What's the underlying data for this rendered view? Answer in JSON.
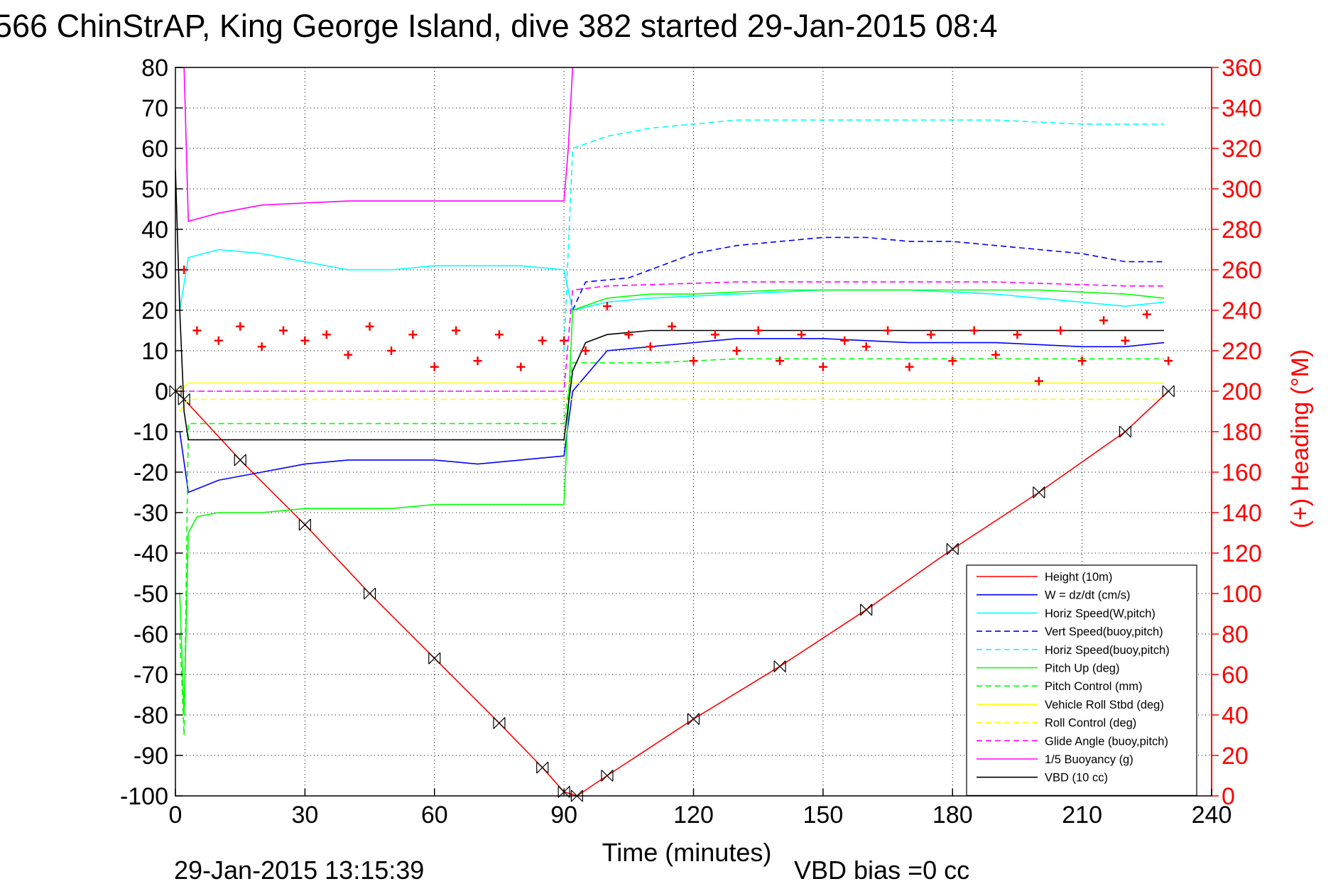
{
  "title": "566 ChinStrAP, King George Island, dive 382 started 29-Jan-2015 08:4",
  "footer": {
    "timestamp": "29-Jan-2015 13:15:39",
    "vbd_bias": "VBD bias =0 cc"
  },
  "chart_data": {
    "type": "line",
    "xlabel": "Time (minutes)",
    "ylabel_right": "(+) Heading (°M)",
    "xlim": [
      0,
      240
    ],
    "ylim_left": [
      -100,
      80
    ],
    "ylim_right": [
      0,
      360
    ],
    "x_ticks": [
      "0",
      "30",
      "60",
      "90",
      "120",
      "150",
      "180",
      "210",
      "240"
    ],
    "y_ticks_left": [
      "80",
      "70",
      "60",
      "50",
      "40",
      "30",
      "20",
      "10",
      "0",
      "-10",
      "-20",
      "-30",
      "-40",
      "-50",
      "-60",
      "-70",
      "-80",
      "-90",
      "-100"
    ],
    "y_ticks_right": [
      "360",
      "340",
      "320",
      "300",
      "280",
      "260",
      "240",
      "220",
      "200",
      "180",
      "160",
      "140",
      "120",
      "100",
      "80",
      "60",
      "40",
      "20",
      "0"
    ],
    "grid": true,
    "legend_position": "bottom-right",
    "colors": {
      "red": "#ff0000",
      "blue": "#0000ff",
      "cyan": "#00ffff",
      "green": "#00ff00",
      "yellow": "#ffff00",
      "magenta": "#ff00ff",
      "black": "#000000"
    },
    "series": [
      {
        "name": "Height (10m)",
        "color": "#ff0000",
        "style": "solid",
        "x": [
          0,
          2,
          15,
          30,
          45,
          60,
          75,
          85,
          90,
          93,
          100,
          120,
          140,
          160,
          180,
          200,
          220,
          230
        ],
        "y": [
          0,
          -2,
          -17,
          -33,
          -50,
          -66,
          -82,
          -93,
          -99,
          -100,
          -95,
          -81,
          -68,
          -54,
          -39,
          -25,
          -10,
          0
        ]
      },
      {
        "name": "W = dz/dt (cm/s)",
        "color": "#0000ff",
        "style": "solid",
        "x": [
          1,
          3,
          10,
          20,
          30,
          40,
          50,
          60,
          70,
          80,
          90,
          92,
          100,
          110,
          130,
          150,
          170,
          190,
          210,
          220,
          229
        ],
        "y": [
          -10,
          -25,
          -22,
          -20,
          -18,
          -17,
          -17,
          -17,
          -18,
          -17,
          -16,
          0,
          10,
          11,
          13,
          13,
          12,
          12,
          11,
          11,
          12
        ]
      },
      {
        "name": "Horiz Speed(W,pitch)",
        "color": "#00ffff",
        "style": "solid",
        "x": [
          1,
          3,
          10,
          20,
          30,
          40,
          50,
          60,
          70,
          80,
          90,
          92,
          100,
          110,
          130,
          150,
          170,
          190,
          210,
          220,
          229
        ],
        "y": [
          20,
          33,
          35,
          34,
          32,
          30,
          30,
          31,
          31,
          31,
          30,
          20,
          22,
          23,
          24,
          25,
          25,
          24,
          22,
          21,
          22
        ]
      },
      {
        "name": "Vert Speed(buoy,pitch)",
        "color": "#0000ff",
        "style": "dashed",
        "x": [
          92,
          95,
          105,
          110,
          120,
          130,
          140,
          150,
          160,
          170,
          180,
          190,
          200,
          210,
          220,
          229
        ],
        "y": [
          20,
          27,
          28,
          30,
          34,
          36,
          37,
          38,
          38,
          37,
          37,
          36,
          35,
          34,
          32,
          32
        ]
      },
      {
        "name": "Horiz Speed(buoy,pitch)",
        "color": "#00ffff",
        "style": "dashed",
        "x": [
          90,
          92,
          100,
          110,
          120,
          130,
          150,
          170,
          190,
          210,
          229
        ],
        "y": [
          10,
          60,
          63,
          65,
          66,
          67,
          67,
          67,
          67,
          66,
          66
        ]
      },
      {
        "name": "Pitch Up (deg)",
        "color": "#00ff00",
        "style": "solid",
        "x": [
          1,
          2,
          3,
          5,
          10,
          20,
          30,
          40,
          50,
          60,
          70,
          80,
          90,
          92,
          100,
          110,
          120,
          140,
          160,
          180,
          200,
          220,
          229
        ],
        "y": [
          -50,
          -80,
          -35,
          -31,
          -30,
          -30,
          -29,
          -29,
          -29,
          -28,
          -28,
          -28,
          -28,
          20,
          23,
          24,
          24,
          25,
          25,
          25,
          25,
          24,
          23
        ]
      },
      {
        "name": "Pitch Control (mm)",
        "color": "#00ff00",
        "style": "dashed",
        "x": [
          1,
          2,
          3,
          10,
          30,
          50,
          70,
          90,
          92,
          110,
          130,
          150,
          170,
          190,
          210,
          229
        ],
        "y": [
          -60,
          -85,
          -8,
          -8,
          -8,
          -8,
          -8,
          -8,
          7,
          7,
          8,
          8,
          8,
          8,
          8,
          8
        ]
      },
      {
        "name": "Vehicle Roll Stbd (deg)",
        "color": "#ffff00",
        "style": "solid",
        "x": [
          1,
          3,
          10,
          30,
          50,
          70,
          90,
          92,
          110,
          130,
          150,
          170,
          190,
          210,
          229
        ],
        "y": [
          0,
          2,
          2,
          2,
          2,
          2,
          2,
          2,
          2,
          2,
          2,
          2,
          2,
          2,
          2
        ]
      },
      {
        "name": "Roll Control (deg)",
        "color": "#ffff00",
        "style": "dashed",
        "x": [
          1,
          3,
          10,
          30,
          50,
          70,
          90,
          92,
          110,
          130,
          150,
          170,
          190,
          210,
          229
        ],
        "y": [
          -5,
          -2,
          -2,
          -2,
          -2,
          -2,
          -2,
          -2,
          -2,
          -2,
          -2,
          -2,
          -2,
          -2,
          -2
        ]
      },
      {
        "name": "Glide Angle (buoy,pitch)",
        "color": "#ff00ff",
        "style": "dashed",
        "x": [
          1,
          3,
          30,
          60,
          90,
          92,
          100,
          130,
          160,
          190,
          220,
          229
        ],
        "y": [
          0,
          0,
          0,
          0,
          0,
          25,
          26,
          27,
          27,
          27,
          26,
          26
        ]
      },
      {
        "name": "1/5 Buoyancy (g)",
        "color": "#ff00ff",
        "style": "solid",
        "x": [
          1,
          2,
          3,
          10,
          20,
          40,
          60,
          80,
          90,
          91,
          92
        ],
        "y": [
          80,
          80,
          42,
          44,
          46,
          47,
          47,
          47,
          47,
          60,
          80
        ]
      },
      {
        "name": "VBD (10 cc)",
        "color": "#000000",
        "style": "solid",
        "x": [
          0,
          1,
          2,
          3,
          10,
          30,
          60,
          90,
          92,
          95,
          100,
          110,
          150,
          200,
          229
        ],
        "y": [
          55,
          20,
          -5,
          -12,
          -12,
          -12,
          -12,
          -12,
          5,
          12,
          14,
          15,
          15,
          15,
          15
        ]
      },
      {
        "name": "Heading",
        "color": "#ff0000",
        "style": "markers",
        "axis": "right",
        "x": [
          2,
          5,
          10,
          15,
          20,
          25,
          30,
          35,
          40,
          45,
          50,
          55,
          60,
          65,
          70,
          75,
          80,
          85,
          90,
          95,
          100,
          105,
          110,
          115,
          120,
          125,
          130,
          135,
          140,
          145,
          150,
          155,
          160,
          165,
          170,
          175,
          180,
          185,
          190,
          195,
          200,
          205,
          210,
          215,
          220,
          225,
          230
        ],
        "y": [
          260,
          230,
          225,
          232,
          222,
          230,
          225,
          228,
          218,
          232,
          220,
          228,
          212,
          230,
          215,
          228,
          212,
          225,
          225,
          220,
          242,
          228,
          222,
          232,
          215,
          228,
          220,
          230,
          215,
          228,
          212,
          225,
          222,
          230,
          212,
          228,
          215,
          230,
          218,
          228,
          205,
          230,
          215,
          235,
          225,
          238,
          215
        ]
      }
    ]
  }
}
